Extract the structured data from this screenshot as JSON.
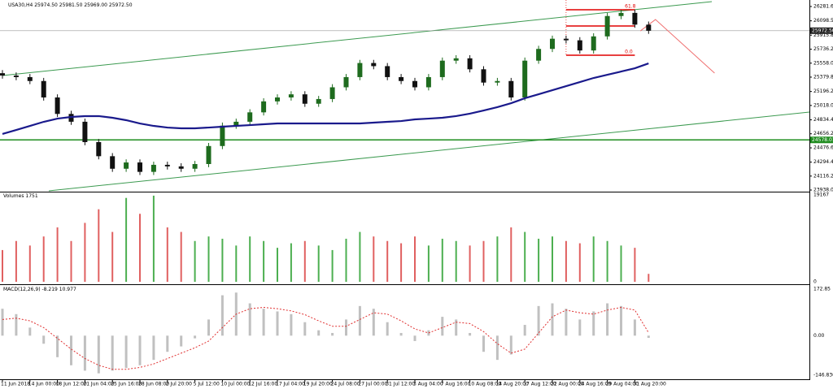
{
  "chart_data": {
    "type": "candlestick",
    "symbol": "USA30,H4",
    "header_ohlc": [
      {
        "value": 25974.5,
        "label": "25974.50"
      },
      {
        "value": 25981.5,
        "label": "25981.50"
      },
      {
        "value": 25969,
        "label": "25969.00"
      },
      {
        "value": 25972.5,
        "label": "25972.50"
      }
    ],
    "categories": [
      "11 Jun 2018",
      null,
      "14 Jun 00:00",
      null,
      "18 Jun 12:00",
      null,
      "21 Jun 04:00",
      null,
      "25 Jun 16:00",
      null,
      "28 Jun 08:00",
      null,
      "2 Jul 20:00",
      null,
      "5 Jul 12:00",
      null,
      "10 Jul 00:00",
      null,
      "12 Jul 16:00",
      null,
      "17 Jul 04:00",
      null,
      "19 Jul 20:00",
      null,
      "24 Jul 08:00",
      null,
      "27 Jul 00:00",
      null,
      "31 Jul 12:00",
      null,
      "3 Aug 04:00",
      null,
      "7 Aug 16:00",
      null,
      "10 Aug 08:00",
      null,
      "14 Aug 20:00",
      null,
      "17 Aug 12:00",
      null,
      "22 Aug 00:00",
      null,
      "24 Aug 16:00",
      null,
      "29 Aug 04:00",
      null,
      "31 Aug 20:00",
      null
    ],
    "open": [
      25430,
      25400,
      25380,
      25330,
      25120,
      24910,
      24810,
      24550,
      24370,
      24210,
      24290,
      24170,
      24260,
      24240,
      24210,
      24270,
      24500,
      24760,
      24810,
      24930,
      25070,
      25120,
      25160,
      25040,
      25100,
      25250,
      25380,
      25560,
      25520,
      25380,
      25330,
      25250,
      25380,
      25590,
      25620,
      25480,
      25310,
      25330,
      25120,
      25590,
      25740,
      25870,
      25850,
      25720,
      25900,
      26160,
      26200,
      26050
    ],
    "high": [
      25470,
      25440,
      25420,
      25370,
      25160,
      24950,
      24850,
      24590,
      24410,
      24330,
      24330,
      24300,
      24300,
      24280,
      24310,
      24540,
      24800,
      24850,
      24970,
      25110,
      25160,
      25200,
      25200,
      25140,
      25290,
      25420,
      25600,
      25600,
      25560,
      25420,
      25370,
      25420,
      25630,
      25660,
      25660,
      25520,
      25370,
      25370,
      25630,
      25780,
      25910,
      25910,
      25890,
      25940,
      26200,
      26240,
      26240,
      26090
    ],
    "low": [
      25360,
      25340,
      25290,
      25080,
      24870,
      24770,
      24510,
      24330,
      24170,
      24170,
      24130,
      24130,
      24200,
      24170,
      24170,
      24230,
      24460,
      24720,
      24770,
      24890,
      25030,
      25080,
      25000,
      25000,
      25060,
      25210,
      25340,
      25480,
      25340,
      25290,
      25210,
      25210,
      25340,
      25550,
      25440,
      25270,
      25270,
      25080,
      25080,
      25550,
      25700,
      25810,
      25680,
      25680,
      25860,
      26120,
      26010,
      25932
    ],
    "close": [
      25400,
      25380,
      25330,
      25120,
      24910,
      24810,
      24550,
      24370,
      24210,
      24290,
      24170,
      24260,
      24240,
      24210,
      24270,
      24500,
      24760,
      24810,
      24930,
      25070,
      25120,
      25160,
      25040,
      25100,
      25250,
      25380,
      25560,
      25520,
      25380,
      25330,
      25250,
      25380,
      25590,
      25620,
      25480,
      25310,
      25330,
      25120,
      25590,
      25740,
      25870,
      25850,
      25720,
      25900,
      26160,
      26200,
      26050,
      25972.5
    ],
    "bull_color": "#1e6b1e",
    "bear_color": "#111111",
    "ylim": [
      23938,
      26281.6
    ],
    "yticks": [
      {
        "value": 26281.6,
        "label": "26281.60"
      },
      {
        "value": 26098.5,
        "label": "26098.50"
      },
      {
        "value": 25915.8,
        "label": "25915.80"
      },
      {
        "value": 25736.2,
        "label": "25736.20"
      },
      {
        "value": 25558,
        "label": "25558.00"
      },
      {
        "value": 25379.8,
        "label": "25379.80"
      },
      {
        "value": 25196.2,
        "label": "25196.20"
      },
      {
        "value": 25018,
        "label": "25018.00"
      },
      {
        "value": 24834.4,
        "label": "24834.40"
      },
      {
        "value": 24656.2,
        "label": "24656.20"
      },
      {
        "value": 24476.6,
        "label": "24476.60"
      },
      {
        "value": 24294.4,
        "label": "24294.40"
      },
      {
        "value": 24116.2,
        "label": "24116.20"
      },
      {
        "value": 23938,
        "label": "23938.00"
      }
    ],
    "moving_average": {
      "color": "#1a1a8c",
      "values": [
        24654,
        24705,
        24757,
        24809,
        24850,
        24871,
        24882,
        24882,
        24861,
        24830,
        24788,
        24757,
        24736,
        24726,
        24726,
        24736,
        24747,
        24757,
        24767,
        24778,
        24788,
        24788,
        24788,
        24788,
        24788,
        24788,
        24788,
        24799,
        24809,
        24819,
        24840,
        24850,
        24861,
        24882,
        24913,
        24954,
        24996,
        25047,
        25110,
        25161,
        25213,
        25265,
        25317,
        25369,
        25410,
        25451,
        25493,
        25555
      ]
    },
    "trendlines": [
      {
        "color": "#3c9a50",
        "x": [
          0,
          51.6
        ],
        "y": [
          25400,
          26344
        ]
      },
      {
        "color": "#3c9a50",
        "x": [
          3.37,
          58.7
        ],
        "y": [
          23928,
          24933
        ]
      }
    ],
    "support_line": {
      "value": 24578.01,
      "color": "#1e8c1e"
    },
    "current_price": {
      "value": 25972.5,
      "label": "25972.50",
      "color": "#999999"
    },
    "fib": {
      "color": "#e00000",
      "x": [
        41,
        46
      ],
      "levels": [
        26240,
        26033,
        25659
      ],
      "labels": [
        "61.8",
        null,
        "0.0"
      ]
    },
    "forecast": {
      "color": "#f07070",
      "x": [
        46.4,
        47.5,
        51.8
      ],
      "y": [
        25970,
        26115,
        25431
      ]
    },
    "volume": {
      "title": "Volumes",
      "up_color": "#4caf50",
      "down_color": "#e06060",
      "values": [
        7000,
        9000,
        8000,
        10000,
        12000,
        9000,
        13000,
        16000,
        11000,
        18500,
        15000,
        19000,
        12000,
        11000,
        9000,
        10000,
        9500,
        8000,
        10000,
        9000,
        7500,
        8500,
        9000,
        8000,
        7000,
        9500,
        11000,
        10000,
        9000,
        8500,
        10000,
        8000,
        9500,
        9000,
        8000,
        9000,
        10000,
        12000,
        11000,
        9500,
        10000,
        9000,
        8500,
        10000,
        9000,
        8000,
        7500,
        1751
      ],
      "ylim": [
        0,
        19167
      ],
      "yticks": [
        19167,
        0
      ]
    },
    "macd": {
      "title": "MACD(12,26,9)",
      "histogram": {
        "color": "#c0c0c0",
        "values": [
          100,
          80,
          30,
          -30,
          -80,
          -110,
          -130,
          -140,
          -130,
          -120,
          -110,
          -90,
          -60,
          -40,
          -10,
          60,
          150,
          160,
          120,
          100,
          90,
          80,
          50,
          20,
          10,
          60,
          110,
          100,
          50,
          10,
          -20,
          20,
          70,
          60,
          10,
          -60,
          -90,
          -70,
          40,
          110,
          120,
          100,
          60,
          90,
          120,
          110,
          60,
          -8.219
        ]
      },
      "signal": {
        "color": "#e03030",
        "values": [
          60,
          65,
          55,
          30,
          -10,
          -50,
          -85,
          -110,
          -125,
          -125,
          -118,
          -105,
          -85,
          -65,
          -45,
          -20,
          30,
          80,
          100,
          105,
          100,
          92,
          78,
          55,
          35,
          35,
          60,
          85,
          80,
          55,
          25,
          10,
          30,
          50,
          45,
          15,
          -30,
          -65,
          -50,
          10,
          70,
          95,
          85,
          80,
          95,
          105,
          95,
          10.977
        ]
      },
      "ylim": [
        -146.836,
        172.85
      ],
      "yticks": [
        172.85,
        {
          "value": 0,
          "label": "0.00"
        },
        -146.836
      ]
    }
  }
}
